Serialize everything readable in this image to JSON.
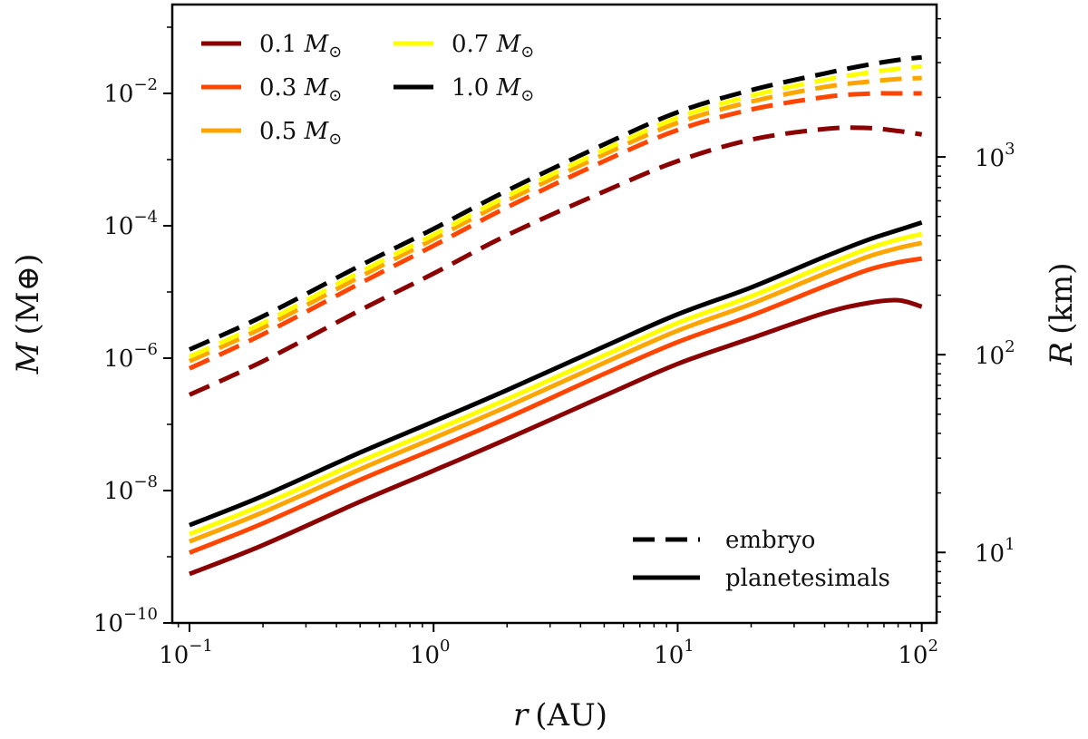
{
  "chart_data": {
    "type": "line",
    "x_scale": "log",
    "y_scale": "log",
    "xlabel_var": "r",
    "xlabel_unit": "(AU)",
    "ylabel_var": "M",
    "ylabel_unit": "(M⊕)",
    "y2label_var": "R",
    "y2label_unit": "(km)",
    "xlim": [
      0.085,
      115
    ],
    "ylim": [
      1e-10,
      0.22
    ],
    "y2lim": [
      4.4,
      5900
    ],
    "x_ticks": [
      {
        "value": 0.1,
        "base": "10",
        "exp": "−1"
      },
      {
        "value": 1,
        "base": "10",
        "exp": "0"
      },
      {
        "value": 10,
        "base": "10",
        "exp": "1"
      },
      {
        "value": 100,
        "base": "10",
        "exp": "2"
      }
    ],
    "y_ticks": [
      {
        "value": 1e-10,
        "base": "10",
        "exp": "−10"
      },
      {
        "value": 1e-08,
        "base": "10",
        "exp": "−8"
      },
      {
        "value": 1e-06,
        "base": "10",
        "exp": "−6"
      },
      {
        "value": 0.0001,
        "base": "10",
        "exp": "−4"
      },
      {
        "value": 0.01,
        "base": "10",
        "exp": "−2"
      }
    ],
    "y2_ticks": [
      {
        "value": 10,
        "base": "10",
        "exp": "1"
      },
      {
        "value": 100,
        "base": "10",
        "exp": "2"
      },
      {
        "value": 1000,
        "base": "10",
        "exp": "3"
      }
    ],
    "x": [
      0.1,
      0.2,
      0.5,
      1,
      2,
      5,
      10,
      20,
      40,
      60,
      80,
      100
    ],
    "series": [
      {
        "name": "0.1",
        "color": "#8b0000",
        "kind": "embryo",
        "values": [
          2.8e-07,
          9e-07,
          5.3e-06,
          1.9e-05,
          7.2e-05,
          0.00033,
          0.00095,
          0.002,
          0.0029,
          0.003,
          0.0027,
          0.0024
        ]
      },
      {
        "name": "0.3",
        "color": "#ff4500",
        "kind": "embryo",
        "values": [
          7e-07,
          2.3e-06,
          1.35e-05,
          5e-05,
          0.00019,
          0.00095,
          0.0028,
          0.0057,
          0.0088,
          0.0099,
          0.01,
          0.01
        ]
      },
      {
        "name": "0.5",
        "color": "#ffa500",
        "kind": "embryo",
        "values": [
          9e-07,
          2.9e-06,
          1.7e-05,
          6.3e-05,
          0.00024,
          0.0012,
          0.0036,
          0.0075,
          0.0125,
          0.015,
          0.0165,
          0.017
        ]
      },
      {
        "name": "0.7",
        "color": "#ffff00",
        "kind": "embryo",
        "values": [
          1.05e-06,
          3.4e-06,
          2e-05,
          7.3e-05,
          0.00028,
          0.0014,
          0.0043,
          0.0092,
          0.016,
          0.0205,
          0.0235,
          0.0255
        ]
      },
      {
        "name": "1.0",
        "color": "#000000",
        "kind": "embryo",
        "values": [
          1.35e-06,
          4.3e-06,
          2.5e-05,
          9e-05,
          0.00034,
          0.0017,
          0.0052,
          0.0112,
          0.02,
          0.027,
          0.032,
          0.035
        ]
      },
      {
        "name": "0.1",
        "color": "#8b0000",
        "kind": "planetesimals",
        "values": [
          5.5e-10,
          1.5e-09,
          6.8e-09,
          2e-08,
          6e-08,
          2.7e-07,
          8.2e-07,
          2e-06,
          4.8e-06,
          6.8e-06,
          7.5e-06,
          6e-06
        ]
      },
      {
        "name": "0.3",
        "color": "#ff4500",
        "kind": "planetesimals",
        "values": [
          1.15e-09,
          3.2e-09,
          1.45e-08,
          4.2e-08,
          1.25e-07,
          5.8e-07,
          1.75e-06,
          4.4e-06,
          1.22e-05,
          2.15e-05,
          2.8e-05,
          3.2e-05
        ]
      },
      {
        "name": "0.5",
        "color": "#ffa500",
        "kind": "planetesimals",
        "values": [
          1.7e-09,
          4.7e-09,
          2.1e-08,
          6.2e-08,
          1.85e-07,
          8.5e-07,
          2.6e-06,
          6.6e-06,
          1.9e-05,
          3.4e-05,
          4.6e-05,
          5.5e-05
        ]
      },
      {
        "name": "0.7",
        "color": "#ffff00",
        "kind": "planetesimals",
        "values": [
          2.2e-09,
          6.1e-09,
          2.75e-08,
          8e-08,
          2.4e-07,
          1.1e-06,
          3.4e-06,
          8.6e-06,
          2.5e-05,
          4.5e-05,
          6.2e-05,
          7.5e-05
        ]
      },
      {
        "name": "1.0",
        "color": "#000000",
        "kind": "planetesimals",
        "values": [
          3e-09,
          8.3e-09,
          3.75e-08,
          1.1e-07,
          3.3e-07,
          1.5e-06,
          4.6e-06,
          1.17e-05,
          3.4e-05,
          6.1e-05,
          8.6e-05,
          0.000112
        ]
      }
    ],
    "legend_masses": [
      {
        "value": "0.1",
        "color": "#8b0000",
        "unit_var": "M",
        "unit_sub": "⊙"
      },
      {
        "value": "0.3",
        "color": "#ff4500",
        "unit_var": "M",
        "unit_sub": "⊙"
      },
      {
        "value": "0.5",
        "color": "#ffa500",
        "unit_var": "M",
        "unit_sub": "⊙"
      },
      {
        "value": "0.7",
        "color": "#ffff00",
        "unit_var": "M",
        "unit_sub": "⊙"
      },
      {
        "value": "1.0",
        "color": "#000000",
        "unit_var": "M",
        "unit_sub": "⊙"
      }
    ],
    "legend_masses_placement": "top-left",
    "legend_styles": [
      {
        "label": "embryo",
        "style": "dashed"
      },
      {
        "label": "planetesimals",
        "style": "solid"
      }
    ],
    "legend_styles_placement": "bottom-right",
    "grid": false
  }
}
